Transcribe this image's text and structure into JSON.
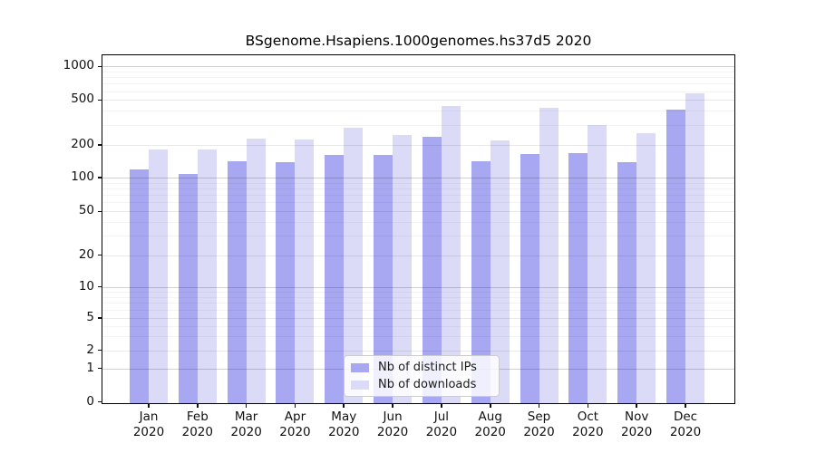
{
  "chart_data": {
    "type": "bar",
    "title": "BSgenome.Hsapiens.1000genomes.hs37d5 2020",
    "categories": [
      "Jan",
      "Feb",
      "Mar",
      "Apr",
      "May",
      "Jun",
      "Jul",
      "Aug",
      "Sep",
      "Oct",
      "Nov",
      "Dec"
    ],
    "x_tick_year": "2020",
    "series": [
      {
        "name": "Nb of distinct IPs",
        "color": "#a8a8f2",
        "values": [
          120,
          110,
          144,
          141,
          165,
          165,
          240,
          143,
          168,
          171,
          141,
          415
        ]
      },
      {
        "name": "Nb of downloads",
        "color": "#dbdbf8",
        "values": [
          183,
          183,
          231,
          225,
          288,
          251,
          448,
          224,
          434,
          308,
          259,
          581
        ]
      }
    ],
    "yticks": [
      0,
      1,
      2,
      5,
      10,
      20,
      50,
      100,
      200,
      500,
      1000
    ],
    "yscale": "symlog",
    "ylim": [
      0,
      1150
    ],
    "grid": true,
    "legend_position": "lower center"
  }
}
